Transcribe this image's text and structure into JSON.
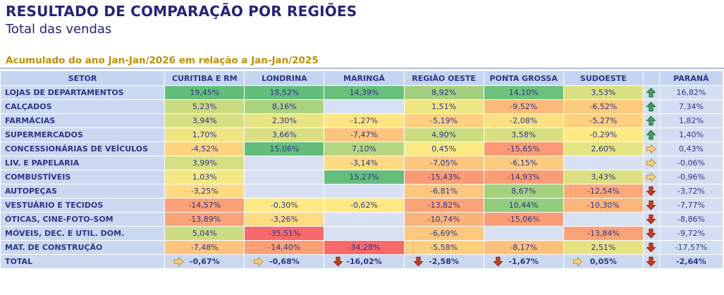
{
  "header": {
    "title": "RESULTADO DE COMPARAÇÃO POR REGIÕES",
    "subtitle": "Total das vendas",
    "period_note": "Acumulado do ano Jan-Jan/2026 em relação a Jan-Jan/2025"
  },
  "chart_data": {
    "type": "table",
    "title": "RESULTADO DE COMPARAÇÃO POR REGIÕES",
    "subtitle": "Total das vendas",
    "note": "Acumulado do ano Jan-Jan/2026 em relação a Jan-Jan/2025",
    "value_format": "percent, pt-BR comma decimals",
    "formatting": "3-color scale backgrounds (red→yellow→green) on region cells; trend arrow icon set (up/right/down) before PARANÁ column and inside TOTAL row cells",
    "columns": [
      "SETOR",
      "CURITIBA E RM",
      "LONDRINA",
      "MARINGÁ",
      "REGIÃO OESTE",
      "PONTA GROSSA",
      "SUDOESTE",
      "",
      "PARANÁ"
    ],
    "rows": [
      {
        "setor": "LOJAS DE DEPARTAMENTOS",
        "values": [
          "19,45%",
          "18,52%",
          "14,39%",
          "8,92%",
          "14,10%",
          "3,53%"
        ],
        "trend": "up",
        "parana": "16,82%"
      },
      {
        "setor": "CALÇADOS",
        "values": [
          "5,23%",
          "8,16%",
          null,
          "1,51%",
          "-9,52%",
          "-6,52%"
        ],
        "trend": "up",
        "parana": "7,34%"
      },
      {
        "setor": "FARMÁCIAS",
        "values": [
          "3,94%",
          "2,30%",
          "-1,27%",
          "-5,19%",
          "-2,08%",
          "-5,27%"
        ],
        "trend": "up",
        "parana": "1,82%"
      },
      {
        "setor": "SUPERMERCADOS",
        "values": [
          "1,70%",
          "3,66%",
          "-7,47%",
          "4,90%",
          "3,58%",
          "-0,29%"
        ],
        "trend": "up",
        "parana": "1,40%"
      },
      {
        "setor": "CONCESSIONÁRIAS DE VEÍCULOS",
        "values": [
          "-4,52%",
          "15,06%",
          "7,10%",
          "0,45%",
          "-15,65%",
          "2,60%"
        ],
        "trend": "right",
        "parana": "0,43%"
      },
      {
        "setor": "LIV. E PAPELARIA",
        "values": [
          "3,99%",
          null,
          "-3,14%",
          "-7,05%",
          "-6,15%",
          null
        ],
        "trend": "right",
        "parana": "-0,06%"
      },
      {
        "setor": "COMBUSTÍVEIS",
        "values": [
          "1,03%",
          null,
          "15,27%",
          "-15,43%",
          "-14,93%",
          "3,43%"
        ],
        "trend": "right",
        "parana": "-0,96%"
      },
      {
        "setor": "AUTOPEÇAS",
        "values": [
          "-3,25%",
          null,
          null,
          "-6,81%",
          "8,67%",
          "-12,54%"
        ],
        "trend": "down",
        "parana": "-3,72%"
      },
      {
        "setor": "VESTUÁRIO E TECIDOS",
        "values": [
          "-14,57%",
          "-0,30%",
          "-0,62%",
          "-13,82%",
          "10,44%",
          "-10,30%"
        ],
        "trend": "down",
        "parana": "-7,77%"
      },
      {
        "setor": "ÓTICAS, CINE-FOTO-SOM",
        "values": [
          "-13,89%",
          "-3,26%",
          null,
          "-10,74%",
          "-15,06%",
          null
        ],
        "trend": "down",
        "parana": "-8,86%"
      },
      {
        "setor": "MÓVEIS, DEC. E UTIL. DOM.",
        "values": [
          "5,04%",
          "-35,51%",
          null,
          "-6,69%",
          null,
          "-13,84%"
        ],
        "trend": "down",
        "parana": "-9,72%"
      },
      {
        "setor": "MAT. DE CONSTRUÇÃO",
        "values": [
          "-7,48%",
          "-14,40%",
          "-34,28%",
          "-5,58%",
          "-8,17%",
          "2,51%"
        ],
        "trend": "down",
        "parana": "-17,57%"
      }
    ],
    "total": {
      "label": "TOTAL",
      "cells": [
        [
          "right",
          "-0,67%"
        ],
        [
          "right",
          "-0,68%"
        ],
        [
          "down",
          "-16,02%"
        ],
        [
          "down",
          "-2,58%"
        ],
        [
          "down",
          "-1,67%"
        ],
        [
          "right",
          "0,05%"
        ]
      ],
      "trend": "down",
      "parana": "-2,64%"
    }
  },
  "icons": {
    "up": "trend-up-arrow-icon",
    "right": "trend-flat-right-arrow-icon",
    "down": "trend-down-arrow-icon"
  },
  "colors": {
    "title_navy": "#23237B",
    "text_navy": "#2E3487",
    "note_gold": "#BF8F00",
    "header_bg": "#C5D4EF",
    "label_bg": "#CBD9F0",
    "side_bg": "#D4DEF2",
    "blank_bg": "#D8E1F3",
    "scale_green": "#63BE7B",
    "scale_yellow": "#FFEB84",
    "scale_red": "#F8696B",
    "scale_pos_max": 15,
    "scale_neg_min": -25,
    "arrow_up": "#3FA257",
    "arrow_right": "#F5D77E",
    "arrow_down": "#CE3B1C"
  }
}
